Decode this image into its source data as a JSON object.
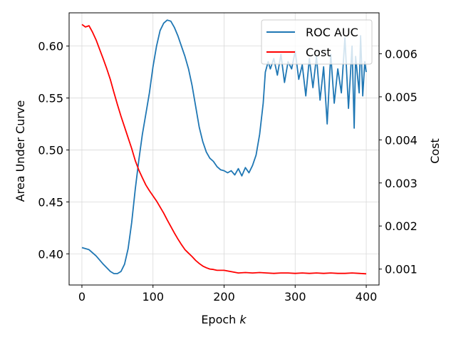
{
  "chart_data": {
    "type": "line",
    "xlabel": "Epoch",
    "xlabel_var": "k",
    "ylabel_left": "Area Under Curve",
    "ylabel_right": "Cost",
    "xlim": [
      -18,
      418
    ],
    "ylim_left": [
      0.37,
      0.632
    ],
    "ylim_right": [
      0.00063,
      0.00695
    ],
    "x_ticks": [
      0,
      100,
      200,
      300,
      400
    ],
    "y_left_ticks": [
      0.4,
      0.45,
      0.5,
      0.55,
      0.6
    ],
    "y_left_tick_labels": [
      "0.40",
      "0.45",
      "0.50",
      "0.55",
      "0.60"
    ],
    "y_right_ticks": [
      0.001,
      0.002,
      0.003,
      0.004,
      0.005,
      0.006
    ],
    "y_right_tick_labels": [
      "0.001",
      "0.002",
      "0.003",
      "0.004",
      "0.005",
      "0.006"
    ],
    "grid": true,
    "legend_position": "top-right",
    "series": [
      {
        "name": "ROC AUC",
        "axis": "left",
        "color": "#1f77b4",
        "x": [
          0,
          10,
          20,
          30,
          40,
          45,
          50,
          55,
          60,
          65,
          70,
          75,
          80,
          85,
          90,
          95,
          100,
          105,
          110,
          115,
          120,
          125,
          130,
          135,
          140,
          145,
          150,
          155,
          160,
          165,
          170,
          175,
          180,
          185,
          190,
          195,
          200,
          205,
          210,
          215,
          220,
          225,
          230,
          235,
          240,
          245,
          250,
          255,
          258,
          262,
          265,
          270,
          275,
          280,
          285,
          290,
          295,
          300,
          305,
          310,
          315,
          320,
          325,
          330,
          335,
          340,
          345,
          350,
          355,
          360,
          365,
          370,
          375,
          380,
          383,
          385,
          390,
          392,
          395,
          398,
          400
        ],
        "values": [
          0.406,
          0.404,
          0.398,
          0.39,
          0.383,
          0.381,
          0.381,
          0.383,
          0.39,
          0.405,
          0.43,
          0.462,
          0.49,
          0.515,
          0.535,
          0.555,
          0.58,
          0.6,
          0.615,
          0.622,
          0.625,
          0.624,
          0.618,
          0.61,
          0.6,
          0.59,
          0.578,
          0.562,
          0.542,
          0.522,
          0.508,
          0.498,
          0.492,
          0.489,
          0.484,
          0.481,
          0.48,
          0.478,
          0.48,
          0.476,
          0.482,
          0.475,
          0.483,
          0.478,
          0.485,
          0.495,
          0.515,
          0.545,
          0.575,
          0.585,
          0.578,
          0.588,
          0.572,
          0.592,
          0.565,
          0.585,
          0.578,
          0.595,
          0.568,
          0.582,
          0.552,
          0.588,
          0.56,
          0.59,
          0.548,
          0.58,
          0.525,
          0.592,
          0.545,
          0.578,
          0.555,
          0.608,
          0.54,
          0.6,
          0.521,
          0.59,
          0.555,
          0.61,
          0.552,
          0.585,
          0.575
        ]
      },
      {
        "name": "Cost",
        "axis": "right",
        "color": "#ff0000",
        "x": [
          0,
          5,
          10,
          15,
          20,
          25,
          30,
          35,
          40,
          45,
          50,
          55,
          60,
          65,
          70,
          75,
          80,
          85,
          90,
          95,
          100,
          105,
          110,
          115,
          120,
          125,
          130,
          135,
          140,
          145,
          150,
          155,
          160,
          165,
          170,
          175,
          180,
          185,
          190,
          200,
          210,
          220,
          230,
          240,
          250,
          260,
          270,
          280,
          290,
          300,
          310,
          320,
          330,
          340,
          350,
          360,
          370,
          380,
          390,
          400
        ],
        "values": [
          0.00668,
          0.00662,
          0.00665,
          0.0065,
          0.00632,
          0.0061,
          0.00588,
          0.00565,
          0.0054,
          0.0051,
          0.00482,
          0.00455,
          0.0043,
          0.00405,
          0.0038,
          0.00352,
          0.0033,
          0.00312,
          0.00295,
          0.00282,
          0.0027,
          0.00258,
          0.00244,
          0.0023,
          0.00214,
          0.00199,
          0.00184,
          0.0017,
          0.00157,
          0.00145,
          0.00137,
          0.00129,
          0.0012,
          0.00113,
          0.00107,
          0.00103,
          0.001,
          0.00099,
          0.00097,
          0.00097,
          0.00094,
          0.00091,
          0.00092,
          0.00091,
          0.00092,
          0.00091,
          0.0009,
          0.00091,
          0.00091,
          0.0009,
          0.00091,
          0.0009,
          0.00091,
          0.0009,
          0.00091,
          0.0009,
          0.0009,
          0.00091,
          0.0009,
          0.00089
        ]
      }
    ]
  }
}
